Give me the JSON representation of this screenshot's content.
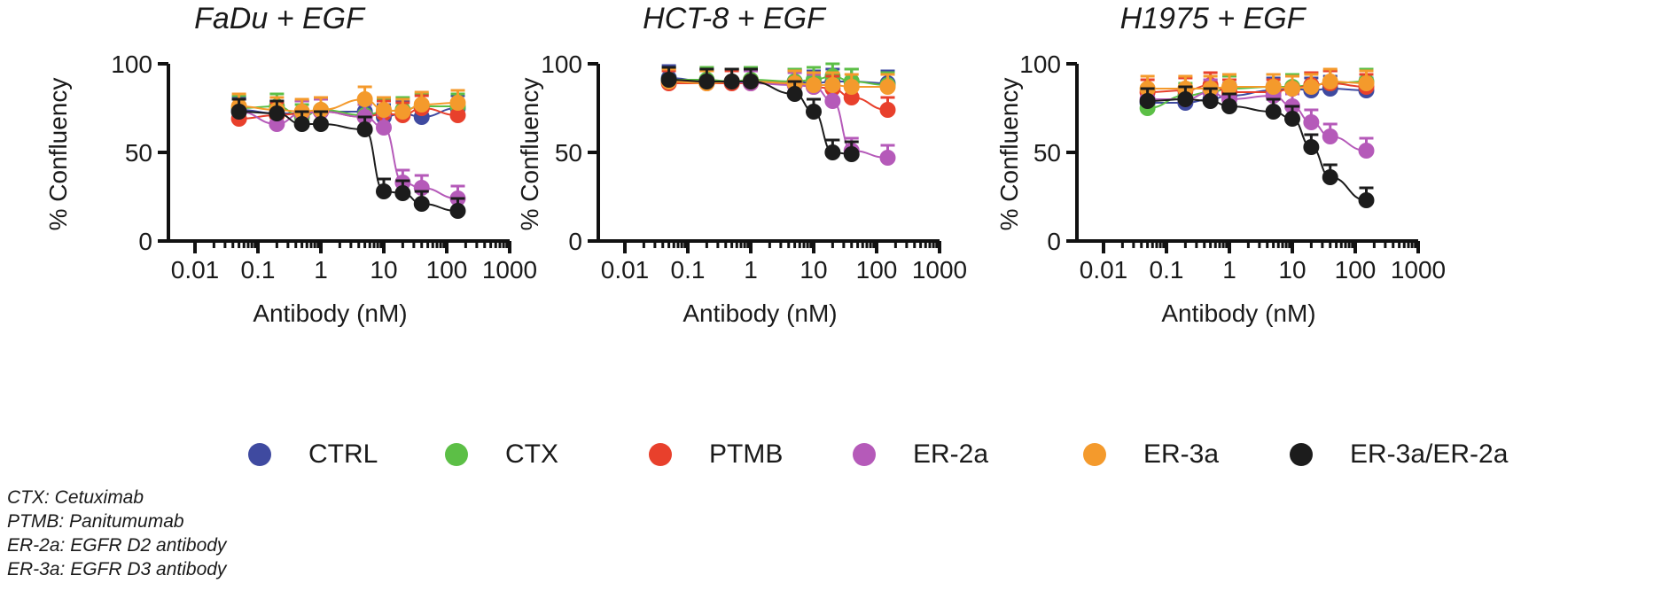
{
  "chart_data": [
    {
      "type": "scatter",
      "title": "FaDu + EGF",
      "xlabel": "Antibody (nM)",
      "ylabel": "% Confluency",
      "xscale": "log",
      "xlim": [
        0.01,
        1000
      ],
      "ylim": [
        0,
        100
      ],
      "xticks": [
        "0.01",
        "0.1",
        "1",
        "10",
        "100",
        "1000"
      ],
      "yticks": [
        "0",
        "50",
        "100"
      ],
      "x": [
        0.05,
        0.2,
        0.5,
        1,
        5,
        10,
        20,
        40,
        150
      ],
      "series": [
        {
          "name": "CTRL",
          "values": [
            74,
            72,
            72,
            73,
            73,
            70,
            72,
            70,
            75
          ]
        },
        {
          "name": "CTX",
          "values": [
            75,
            76,
            70,
            74,
            71,
            73,
            74,
            76,
            76
          ]
        },
        {
          "name": "PTMB",
          "values": [
            69,
            71,
            72,
            73,
            70,
            72,
            71,
            75,
            71
          ]
        },
        {
          "name": "ER-2a",
          "values": [
            73,
            66,
            72,
            73,
            70,
            64,
            33,
            30,
            24
          ]
        },
        {
          "name": "ER-3a",
          "values": [
            76,
            74,
            73,
            74,
            80,
            74,
            73,
            77,
            78
          ]
        },
        {
          "name": "ER-3a/ER-2a",
          "values": [
            73,
            72,
            66,
            66,
            63,
            28,
            27,
            21,
            17
          ]
        }
      ]
    },
    {
      "type": "scatter",
      "title": "HCT-8 + EGF",
      "xlabel": "Antibody (nM)",
      "ylabel": "% Confluency",
      "xscale": "log",
      "xlim": [
        0.01,
        1000
      ],
      "ylim": [
        0,
        100
      ],
      "xticks": [
        "0.01",
        "0.1",
        "1",
        "10",
        "100",
        "1000"
      ],
      "yticks": [
        "0",
        "50",
        "100"
      ],
      "x": [
        0.05,
        0.2,
        0.5,
        1,
        5,
        10,
        20,
        40,
        150
      ],
      "series": [
        {
          "name": "CTRL",
          "values": [
            92,
            90,
            90,
            90,
            90,
            89,
            90,
            90,
            89
          ]
        },
        {
          "name": "CTX",
          "values": [
            91,
            91,
            90,
            91,
            90,
            91,
            93,
            90,
            88
          ]
        },
        {
          "name": "PTMB",
          "values": [
            89,
            89,
            89,
            89,
            89,
            87,
            86,
            81,
            74
          ]
        },
        {
          "name": "ER-2a",
          "values": [
            90,
            90,
            90,
            89,
            88,
            87,
            79,
            51,
            47
          ]
        },
        {
          "name": "ER-3a",
          "values": [
            90,
            89,
            90,
            90,
            89,
            88,
            88,
            87,
            87
          ]
        },
        {
          "name": "ER-3a/ER-2a",
          "values": [
            91,
            90,
            90,
            90,
            83,
            73,
            50,
            49,
            null
          ]
        }
      ]
    },
    {
      "type": "scatter",
      "title": "H1975 + EGF",
      "xlabel": "Antibody (nM)",
      "ylabel": "% Confluency",
      "xscale": "log",
      "xlim": [
        0.01,
        1000
      ],
      "ylim": [
        0,
        100
      ],
      "xticks": [
        "0.01",
        "0.1",
        "1",
        "10",
        "100",
        "1000"
      ],
      "yticks": [
        "0",
        "50",
        "100"
      ],
      "x": [
        0.05,
        0.2,
        0.5,
        1,
        5,
        10,
        20,
        40,
        150
      ],
      "series": [
        {
          "name": "CTRL",
          "values": [
            78,
            78,
            80,
            82,
            85,
            86,
            85,
            86,
            85
          ]
        },
        {
          "name": "CTX",
          "values": [
            75,
            82,
            84,
            86,
            87,
            87,
            88,
            89,
            90
          ]
        },
        {
          "name": "PTMB",
          "values": [
            84,
            85,
            88,
            84,
            84,
            86,
            88,
            89,
            87
          ]
        },
        {
          "name": "ER-2a",
          "values": [
            80,
            80,
            84,
            80,
            82,
            76,
            67,
            59,
            51
          ]
        },
        {
          "name": "ER-3a",
          "values": [
            86,
            86,
            86,
            87,
            87,
            86,
            87,
            90,
            89
          ]
        },
        {
          "name": "ER-3a/ER-2a",
          "values": [
            79,
            80,
            79,
            76,
            73,
            69,
            53,
            36,
            23
          ]
        }
      ]
    }
  ],
  "legend": {
    "items": [
      {
        "label": "CTRL",
        "color": "#3f4aa0"
      },
      {
        "label": "CTX",
        "color": "#5cbf46"
      },
      {
        "label": "PTMB",
        "color": "#e8402c"
      },
      {
        "label": "ER-2a",
        "color": "#b55ab9"
      },
      {
        "label": "ER-3a",
        "color": "#f49a2c"
      },
      {
        "label": "ER-3a/ER-2a",
        "color": "#1c1c1c"
      }
    ]
  },
  "footnotes": [
    "CTX: Cetuximab",
    "PTMB: Panitumumab",
    "ER-2a: EGFR D2 antibody",
    "ER-3a: EGFR D3 antibody"
  ]
}
